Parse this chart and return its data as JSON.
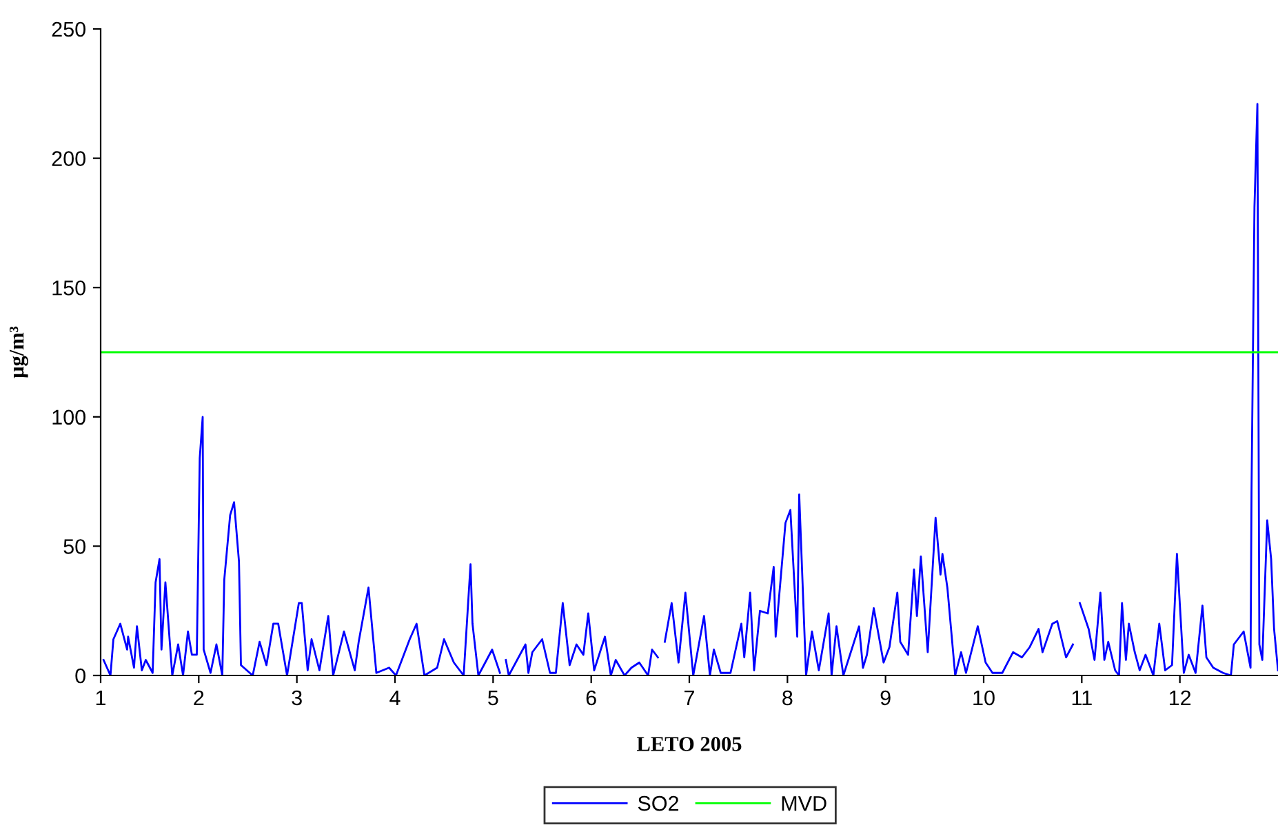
{
  "chart_data": {
    "type": "line",
    "xlabel": "LETO 2005",
    "ylabel": "μg/m³",
    "xlim": [
      1,
      13
    ],
    "xticks": [
      1,
      2,
      3,
      4,
      5,
      6,
      7,
      8,
      9,
      10,
      11,
      12
    ],
    "ylim": [
      0,
      250
    ],
    "yticks": [
      0,
      50,
      100,
      150,
      200,
      250
    ],
    "grid": false,
    "legend": "bottom",
    "marker": "none",
    "line_style": "solid",
    "ref_lines": [
      {
        "axis": "y",
        "value": 125,
        "label": "MVD",
        "color": "#00ff00"
      }
    ],
    "series": [
      {
        "name": "SO2",
        "color": "#0000ff",
        "x": [
          1.03,
          1.1,
          1.13,
          1.2,
          1.27,
          1.28,
          1.34,
          1.37,
          1.42,
          1.46,
          1.53,
          1.56,
          1.6,
          1.62,
          1.66,
          1.73,
          1.79,
          1.84,
          1.89,
          1.93,
          1.98,
          2.01,
          2.04,
          2.05,
          2.12,
          2.18,
          2.24,
          2.26,
          2.32,
          2.36,
          2.41,
          2.43,
          2.55,
          2.62,
          2.69,
          2.76,
          2.81,
          2.9,
          3.02,
          3.05,
          3.11,
          3.15,
          3.23,
          3.32,
          3.37,
          3.48,
          3.59,
          3.63,
          3.73,
          3.81,
          3.94,
          4.01,
          4.15,
          4.22,
          4.3,
          4.43,
          4.5,
          4.6,
          4.7,
          4.77,
          4.79,
          4.85,
          4.99,
          5.07,
          5.1,
          5.13,
          5.16,
          5.33,
          5.36,
          5.4,
          5.5,
          5.58,
          5.64,
          5.71,
          5.78,
          5.85,
          5.92,
          5.97,
          6.03,
          6.14,
          6.2,
          6.25,
          6.34,
          6.41,
          6.49,
          6.58,
          6.62,
          6.68,
          6.71,
          6.75,
          6.82,
          6.89,
          6.96,
          7.04,
          7.15,
          7.21,
          7.25,
          7.32,
          7.42,
          7.53,
          7.56,
          7.62,
          7.66,
          7.72,
          7.8,
          7.86,
          7.88,
          7.98,
          8.03,
          8.1,
          8.12,
          8.19,
          8.25,
          8.32,
          8.42,
          8.45,
          8.5,
          8.57,
          8.73,
          8.77,
          8.81,
          8.88,
          8.98,
          9.04,
          9.12,
          9.15,
          9.23,
          9.29,
          9.32,
          9.36,
          9.43,
          9.51,
          9.56,
          9.58,
          9.63,
          9.71,
          9.77,
          9.82,
          9.94,
          10.02,
          10.09,
          10.19,
          10.3,
          10.39,
          10.47,
          10.56,
          10.6,
          10.7,
          10.75,
          10.84,
          10.91,
          10.94,
          10.98,
          11.07,
          11.13,
          11.19,
          11.23,
          11.27,
          11.34,
          11.38,
          11.41,
          11.45,
          11.48,
          11.54,
          11.59,
          11.65,
          11.73,
          11.79,
          11.85,
          11.92,
          11.97,
          12.02,
          12.04,
          12.09,
          12.16,
          12.23,
          12.27,
          12.34,
          12.44,
          12.52,
          12.55,
          12.65,
          12.72,
          12.73,
          12.76,
          12.79,
          12.81,
          12.84,
          12.89,
          12.93,
          12.96,
          13.0
        ],
        "values": [
          6,
          0,
          14,
          20,
          10,
          15,
          3,
          19,
          2,
          6,
          1,
          36,
          45,
          10,
          36,
          0,
          12,
          0,
          17,
          8,
          8,
          84,
          100,
          10,
          1,
          12,
          0,
          37,
          62,
          67,
          44,
          4,
          0,
          13,
          4,
          20,
          20,
          0,
          28,
          28,
          2,
          14,
          2,
          23,
          0,
          17,
          2,
          13,
          34,
          1,
          3,
          0,
          14,
          20,
          0,
          3,
          14,
          5,
          0,
          43,
          20,
          0,
          10,
          1,
          null,
          6,
          0,
          12,
          1,
          9,
          14,
          1,
          1,
          28,
          4,
          12,
          8,
          24,
          2,
          15,
          0,
          6,
          0,
          3,
          5,
          0,
          10,
          7,
          null,
          13,
          28,
          5,
          32,
          0,
          23,
          0,
          10,
          1,
          1,
          20,
          7,
          32,
          2,
          25,
          24,
          42,
          15,
          59,
          64,
          15,
          70,
          0,
          17,
          2,
          24,
          0,
          19,
          0,
          19,
          3,
          8,
          26,
          5,
          11,
          32,
          13,
          8,
          41,
          23,
          46,
          9,
          61,
          39,
          47,
          34,
          0,
          9,
          1,
          19,
          5,
          1,
          1,
          9,
          7,
          11,
          18,
          9,
          20,
          21,
          7,
          12,
          null,
          28,
          18,
          6,
          32,
          6,
          13,
          2,
          0,
          28,
          6,
          20,
          9,
          2,
          8,
          0,
          20,
          2,
          4,
          47,
          14,
          1,
          8,
          1,
          27,
          7,
          3,
          1,
          0,
          12,
          17,
          3,
          71,
          181,
          221,
          12,
          6,
          60,
          45,
          18,
          2
        ]
      }
    ]
  }
}
